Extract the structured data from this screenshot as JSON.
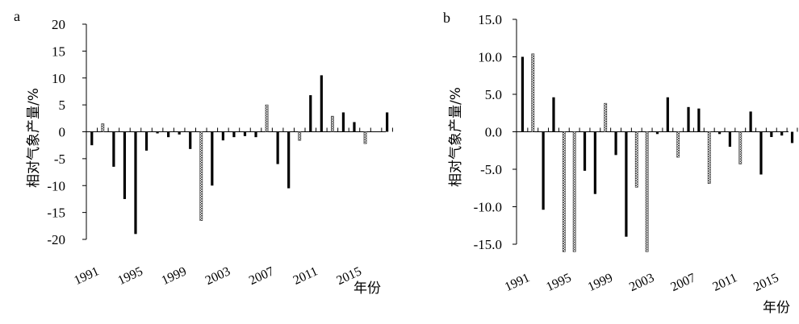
{
  "chart_data": [
    {
      "type": "bar",
      "panel_label": "a",
      "ylabel": "相对气象产量/%",
      "xlabel": "年份",
      "ylim": [
        -20,
        20
      ],
      "yticks": [
        -20,
        -15,
        -10,
        -5,
        0,
        5,
        10,
        15,
        20
      ],
      "ytick_labels": [
        "-20",
        "-15",
        "-10",
        "-5",
        "0",
        "5",
        "10",
        "15",
        "20"
      ],
      "xtick_labels": [
        "1991",
        "1995",
        "1999",
        "2003",
        "2007",
        "2011",
        "2015"
      ],
      "xtick_years": [
        1991,
        1995,
        1999,
        2003,
        2007,
        2011,
        2015
      ],
      "years": [
        1991,
        1992,
        1993,
        1994,
        1995,
        1996,
        1997,
        1998,
        1999,
        2000,
        2001,
        2002,
        2003,
        2004,
        2005,
        2006,
        2007,
        2008,
        2009,
        2010,
        2011,
        2012,
        2013,
        2014,
        2015,
        2016,
        2017,
        2018
      ],
      "values": [
        -2.5,
        1.5,
        -6.5,
        -12.5,
        -19,
        -3.5,
        -0.3,
        -1,
        -0.5,
        -3.2,
        -16.5,
        -10,
        -1.6,
        -1,
        -0.8,
        -1,
        5,
        -6,
        -10.5,
        -1.6,
        6.8,
        10.5,
        2.9,
        3.6,
        1.8,
        -2.2,
        0,
        3.6
      ],
      "textured": [
        false,
        true,
        false,
        false,
        false,
        false,
        false,
        false,
        false,
        false,
        true,
        false,
        false,
        false,
        false,
        false,
        true,
        false,
        false,
        true,
        false,
        false,
        true,
        false,
        false,
        true,
        false,
        false
      ]
    },
    {
      "type": "bar",
      "panel_label": "b",
      "ylabel": "相对气象产量/%",
      "xlabel": "年份",
      "ylim": [
        -15,
        15
      ],
      "yticks": [
        -15,
        -10,
        -5,
        0,
        5,
        10,
        15
      ],
      "ytick_labels": [
        "-15.0",
        "-10.0",
        "-5.0",
        "0.0",
        "5.0",
        "10.0",
        "15.0"
      ],
      "xtick_labels": [
        "1991",
        "1995",
        "1999",
        "2003",
        "2007",
        "2011",
        "2015"
      ],
      "xtick_years": [
        1991,
        1995,
        1999,
        2003,
        2007,
        2011,
        2015
      ],
      "years": [
        1991,
        1992,
        1993,
        1994,
        1995,
        1996,
        1997,
        1998,
        1999,
        2000,
        2001,
        2002,
        2003,
        2004,
        2005,
        2006,
        2007,
        2008,
        2009,
        2010,
        2011,
        2012,
        2013,
        2014,
        2015,
        2016,
        2017,
        2018
      ],
      "values": [
        10,
        10.4,
        -10.4,
        4.6,
        -16,
        -16,
        -5.2,
        -8.3,
        3.8,
        -3.1,
        -14,
        -7.4,
        -16,
        -0.3,
        4.6,
        -3.4,
        3.3,
        3.1,
        -6.9,
        -0.3,
        -2,
        -4.3,
        2.7,
        -5.7,
        -0.7,
        -0.5,
        -1.5,
        0
      ],
      "textured": [
        false,
        true,
        false,
        false,
        true,
        true,
        false,
        false,
        true,
        false,
        false,
        true,
        true,
        false,
        false,
        true,
        false,
        false,
        true,
        false,
        false,
        true,
        false,
        false,
        false,
        false,
        false,
        false
      ]
    }
  ]
}
